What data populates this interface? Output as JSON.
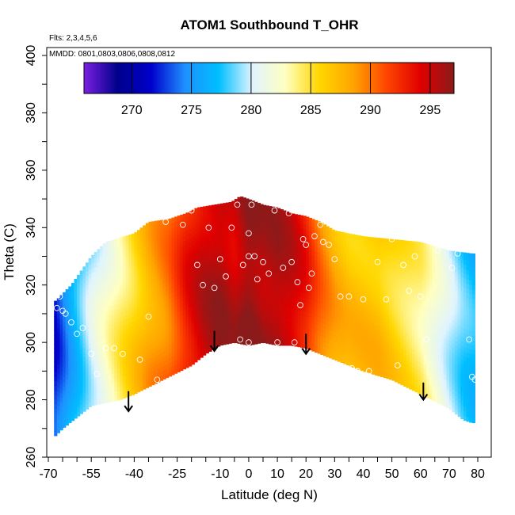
{
  "chart_data": {
    "type": "heatmap",
    "title": "ATOM1 Southbound T_OHR",
    "subtitle_flights": "Flts: 2,3,4,5,6",
    "subtitle_dates": "MMDD: 0801,0803,0806,0808,0812",
    "xlabel": "Latitude (deg N)",
    "ylabel": "Theta (C)",
    "xlim": [
      -70,
      80
    ],
    "ylim": [
      260,
      400
    ],
    "x_ticks": [
      "-70",
      "-55",
      "-40",
      "-25",
      "-10",
      "0",
      "10",
      "20",
      "30",
      "40",
      "50",
      "60",
      "70",
      "80"
    ],
    "y_ticks": [
      "260",
      "280",
      "300",
      "320",
      "340",
      "360",
      "380",
      "400"
    ],
    "colorbar": {
      "range": [
        266,
        297
      ],
      "ticks": [
        "270",
        "275",
        "280",
        "285",
        "290",
        "295"
      ],
      "colors": [
        "#7a1fe0",
        "#00008b",
        "#0000cd",
        "#1e90ff",
        "#00bfff",
        "#e0f4ff",
        "#ffffc0",
        "#ffd700",
        "#ffa500",
        "#ff4500",
        "#e00000",
        "#8b1a1a"
      ]
    },
    "boundary_bottom": [
      {
        "lat": -68,
        "theta": 267
      },
      {
        "lat": -65,
        "theta": 270
      },
      {
        "lat": -60,
        "theta": 274
      },
      {
        "lat": -55,
        "theta": 278
      },
      {
        "lat": -50,
        "theta": 279
      },
      {
        "lat": -45,
        "theta": 280
      },
      {
        "lat": -40,
        "theta": 282
      },
      {
        "lat": -30,
        "theta": 287
      },
      {
        "lat": -20,
        "theta": 292
      },
      {
        "lat": -15,
        "theta": 296
      },
      {
        "lat": -10,
        "theta": 299
      },
      {
        "lat": -5,
        "theta": 300
      },
      {
        "lat": 0,
        "theta": 299
      },
      {
        "lat": 5,
        "theta": 300
      },
      {
        "lat": 10,
        "theta": 299
      },
      {
        "lat": 15,
        "theta": 299
      },
      {
        "lat": 20,
        "theta": 298
      },
      {
        "lat": 25,
        "theta": 296
      },
      {
        "lat": 30,
        "theta": 294
      },
      {
        "lat": 40,
        "theta": 290
      },
      {
        "lat": 50,
        "theta": 287
      },
      {
        "lat": 60,
        "theta": 282
      },
      {
        "lat": 70,
        "theta": 277
      },
      {
        "lat": 75,
        "theta": 273
      },
      {
        "lat": 78,
        "theta": 272
      }
    ],
    "boundary_top": [
      {
        "lat": -68,
        "theta": 314
      },
      {
        "lat": -62,
        "theta": 320
      },
      {
        "lat": -55,
        "theta": 330
      },
      {
        "lat": -50,
        "theta": 335
      },
      {
        "lat": -40,
        "theta": 338
      },
      {
        "lat": -35,
        "theta": 342
      },
      {
        "lat": -28,
        "theta": 343
      },
      {
        "lat": -22,
        "theta": 345
      },
      {
        "lat": -18,
        "theta": 347
      },
      {
        "lat": -12,
        "theta": 348
      },
      {
        "lat": -6,
        "theta": 349
      },
      {
        "lat": -3,
        "theta": 351
      },
      {
        "lat": 0,
        "theta": 350
      },
      {
        "lat": 5,
        "theta": 348
      },
      {
        "lat": 10,
        "theta": 347
      },
      {
        "lat": 15,
        "theta": 345
      },
      {
        "lat": 20,
        "theta": 344
      },
      {
        "lat": 25,
        "theta": 342
      },
      {
        "lat": 30,
        "theta": 339
      },
      {
        "lat": 40,
        "theta": 337
      },
      {
        "lat": 50,
        "theta": 336
      },
      {
        "lat": 60,
        "theta": 335
      },
      {
        "lat": 70,
        "theta": 332
      },
      {
        "lat": 78,
        "theta": 331
      }
    ],
    "field_profile": [
      {
        "lat": -68,
        "t": 272
      },
      {
        "lat": -62,
        "t": 276
      },
      {
        "lat": -55,
        "t": 280
      },
      {
        "lat": -50,
        "t": 282
      },
      {
        "lat": -45,
        "t": 284
      },
      {
        "lat": -40,
        "t": 286
      },
      {
        "lat": -35,
        "t": 288
      },
      {
        "lat": -28,
        "t": 290
      },
      {
        "lat": -22,
        "t": 293
      },
      {
        "lat": -16,
        "t": 295
      },
      {
        "lat": -10,
        "t": 296
      },
      {
        "lat": -5,
        "t": 295
      },
      {
        "lat": 0,
        "t": 297
      },
      {
        "lat": 5,
        "t": 296
      },
      {
        "lat": 10,
        "t": 296
      },
      {
        "lat": 15,
        "t": 295
      },
      {
        "lat": 20,
        "t": 293
      },
      {
        "lat": 25,
        "t": 290
      },
      {
        "lat": 30,
        "t": 288
      },
      {
        "lat": 35,
        "t": 287
      },
      {
        "lat": 40,
        "t": 287
      },
      {
        "lat": 45,
        "t": 287
      },
      {
        "lat": 50,
        "t": 286
      },
      {
        "lat": 55,
        "t": 285
      },
      {
        "lat": 60,
        "t": 284
      },
      {
        "lat": 65,
        "t": 282
      },
      {
        "lat": 70,
        "t": 280
      },
      {
        "lat": 75,
        "t": 278
      },
      {
        "lat": 79,
        "t": 277
      }
    ],
    "points": [
      {
        "lat": -67,
        "theta": 312
      },
      {
        "lat": -66,
        "theta": 316
      },
      {
        "lat": -65,
        "theta": 311
      },
      {
        "lat": -64,
        "theta": 310
      },
      {
        "lat": -62,
        "theta": 307
      },
      {
        "lat": -60,
        "theta": 303
      },
      {
        "lat": -58,
        "theta": 305
      },
      {
        "lat": -55,
        "theta": 296
      },
      {
        "lat": -53,
        "theta": 289
      },
      {
        "lat": -50,
        "theta": 298
      },
      {
        "lat": -47,
        "theta": 298
      },
      {
        "lat": -44,
        "theta": 296
      },
      {
        "lat": -42,
        "theta": 278
      },
      {
        "lat": -38,
        "theta": 294
      },
      {
        "lat": -35,
        "theta": 309
      },
      {
        "lat": -32,
        "theta": 287
      },
      {
        "lat": -29,
        "theta": 342
      },
      {
        "lat": -23,
        "theta": 341
      },
      {
        "lat": -20,
        "theta": 346
      },
      {
        "lat": -18,
        "theta": 327
      },
      {
        "lat": -16,
        "theta": 320
      },
      {
        "lat": -14,
        "theta": 340
      },
      {
        "lat": -12,
        "theta": 319
      },
      {
        "lat": -10,
        "theta": 329
      },
      {
        "lat": -8,
        "theta": 323
      },
      {
        "lat": -6,
        "theta": 340
      },
      {
        "lat": -4,
        "theta": 348
      },
      {
        "lat": -3,
        "theta": 301
      },
      {
        "lat": -2,
        "theta": 327
      },
      {
        "lat": 0,
        "theta": 330
      },
      {
        "lat": 0,
        "theta": 338
      },
      {
        "lat": 0,
        "theta": 300
      },
      {
        "lat": 1,
        "theta": 348
      },
      {
        "lat": 2,
        "theta": 330
      },
      {
        "lat": 3,
        "theta": 322
      },
      {
        "lat": 5,
        "theta": 328
      },
      {
        "lat": 7,
        "theta": 324
      },
      {
        "lat": 9,
        "theta": 346
      },
      {
        "lat": 10,
        "theta": 300
      },
      {
        "lat": 12,
        "theta": 326
      },
      {
        "lat": 14,
        "theta": 345
      },
      {
        "lat": 15,
        "theta": 328
      },
      {
        "lat": 16,
        "theta": 300
      },
      {
        "lat": 17,
        "theta": 321
      },
      {
        "lat": 18,
        "theta": 313
      },
      {
        "lat": 19,
        "theta": 336
      },
      {
        "lat": 20,
        "theta": 334
      },
      {
        "lat": 21,
        "theta": 319
      },
      {
        "lat": 22,
        "theta": 324
      },
      {
        "lat": 23,
        "theta": 337
      },
      {
        "lat": 25,
        "theta": 341
      },
      {
        "lat": 26,
        "theta": 335
      },
      {
        "lat": 28,
        "theta": 334
      },
      {
        "lat": 30,
        "theta": 329
      },
      {
        "lat": 32,
        "theta": 316
      },
      {
        "lat": 35,
        "theta": 316
      },
      {
        "lat": 36,
        "theta": 291
      },
      {
        "lat": 38,
        "theta": 290
      },
      {
        "lat": 40,
        "theta": 315
      },
      {
        "lat": 42,
        "theta": 290
      },
      {
        "lat": 45,
        "theta": 328
      },
      {
        "lat": 48,
        "theta": 315
      },
      {
        "lat": 50,
        "theta": 336
      },
      {
        "lat": 52,
        "theta": 292
      },
      {
        "lat": 54,
        "theta": 327
      },
      {
        "lat": 56,
        "theta": 318
      },
      {
        "lat": 58,
        "theta": 330
      },
      {
        "lat": 60,
        "theta": 316
      },
      {
        "lat": 62,
        "theta": 301
      },
      {
        "lat": 66,
        "theta": 332
      },
      {
        "lat": 71,
        "theta": 326
      },
      {
        "lat": 73,
        "theta": 331
      },
      {
        "lat": 77,
        "theta": 301
      },
      {
        "lat": 78,
        "theta": 288
      },
      {
        "lat": 79,
        "theta": 287
      }
    ],
    "arrows": [
      {
        "lat": -42,
        "from": 283,
        "to": 276
      },
      {
        "lat": -12,
        "from": 304,
        "to": 297
      },
      {
        "lat": 20,
        "from": 303,
        "to": 296
      },
      {
        "lat": 61,
        "from": 286,
        "to": 280
      }
    ],
    "grid": false,
    "legend": "colorbar-top-inside"
  }
}
